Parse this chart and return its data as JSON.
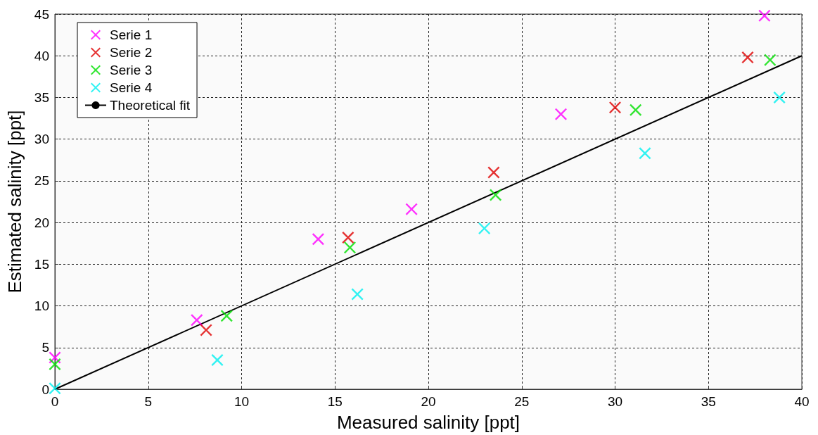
{
  "chart_data": {
    "type": "scatter",
    "xlabel": "Measured salinity [ppt]",
    "ylabel": "Estimated salinity [ppt]",
    "xlim": [
      0,
      40
    ],
    "xticks": [
      0,
      5,
      10,
      15,
      20,
      25,
      30,
      35,
      40
    ],
    "ylim": [
      0,
      45
    ],
    "yticks": [
      0,
      5,
      10,
      15,
      20,
      25,
      30,
      35,
      40,
      45
    ],
    "grid": true,
    "legend": "top left",
    "marker": "cross",
    "series": [
      {
        "name": "Serie 1",
        "color": "#ff00ff",
        "x": [
          0,
          7.6,
          14.1,
          19.1,
          27.1,
          38
        ],
        "values": [
          3.8,
          8.3,
          18,
          21.6,
          33,
          44.8
        ]
      },
      {
        "name": "Serie 2",
        "color": "#e00000",
        "x": [
          8.1,
          15.7,
          23.5,
          30,
          37.1
        ],
        "values": [
          7.1,
          18.2,
          26,
          33.8,
          39.8
        ]
      },
      {
        "name": "Serie 3",
        "color": "#00e000",
        "x": [
          0,
          9.2,
          15.8,
          23.6,
          31.1,
          38.3
        ],
        "values": [
          3,
          8.8,
          17,
          23.3,
          33.5,
          39.5
        ]
      },
      {
        "name": "Serie 4",
        "color": "#00f0f0",
        "x": [
          0,
          8.7,
          16.2,
          23,
          31.6,
          38.8
        ],
        "values": [
          0.1,
          3.5,
          11.4,
          19.3,
          28.3,
          35
        ]
      },
      {
        "name": "Theoretical fit",
        "type": "line",
        "color": "#000000",
        "marker": "none",
        "line_style": "solid",
        "x": [
          0,
          40
        ],
        "values": [
          0,
          40
        ]
      }
    ]
  }
}
